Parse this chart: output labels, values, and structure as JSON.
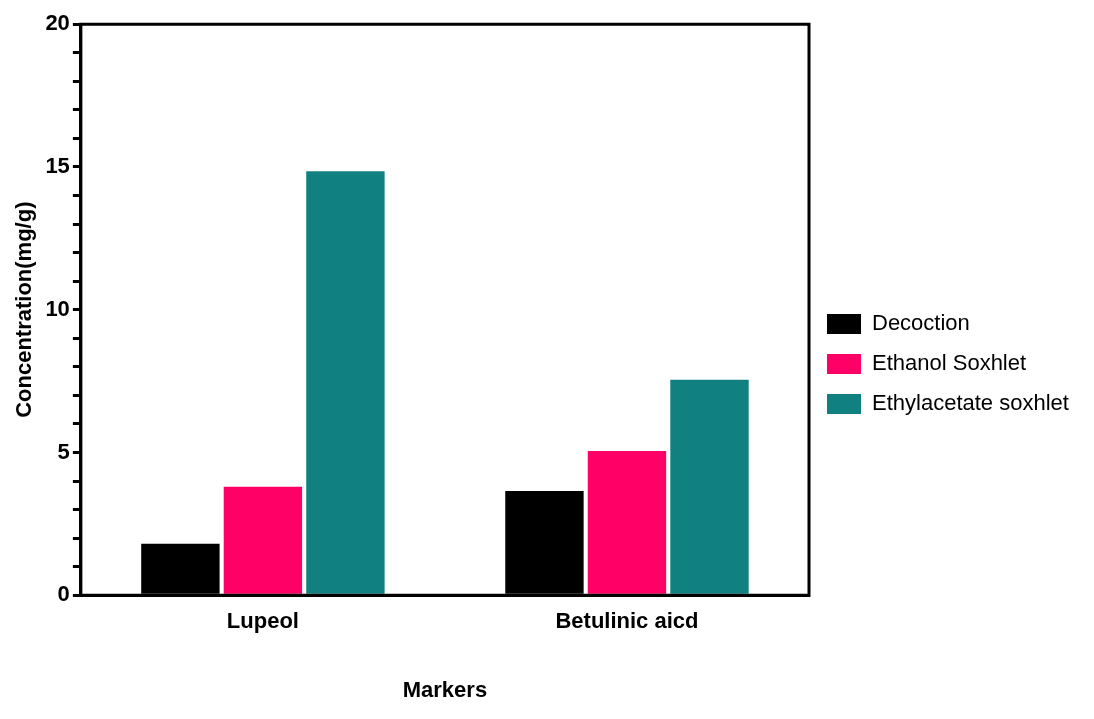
{
  "chart_data": {
    "type": "bar",
    "xlabel": "Markers",
    "ylabel": "Concentration(mg/g)",
    "categories": [
      "Lupeol",
      "Betulinic aicd"
    ],
    "series": [
      {
        "name": "Decoction",
        "color": "#000000",
        "values": [
          1.8,
          3.65
        ]
      },
      {
        "name": "Ethanol Soxhlet",
        "color": "#ff0066",
        "values": [
          3.8,
          5.05
        ]
      },
      {
        "name": "Ethylacetate soxhlet",
        "color": "#108080",
        "values": [
          14.85,
          7.55
        ]
      }
    ],
    "ylim": [
      0,
      20
    ],
    "yticks": [
      0,
      {
        "value": 1,
        "label": null
      },
      {
        "value": 2,
        "label": null
      },
      {
        "value": 3,
        "label": null
      },
      {
        "value": 4,
        "label": null
      },
      5,
      {
        "value": 6,
        "label": null
      },
      {
        "value": 7,
        "label": null
      },
      {
        "value": 8,
        "label": null
      },
      {
        "value": 9,
        "label": null
      },
      10,
      {
        "value": 11,
        "label": null
      },
      {
        "value": 12,
        "label": null
      },
      {
        "value": 13,
        "label": null
      },
      {
        "value": 14,
        "label": null
      },
      15,
      {
        "value": 16,
        "label": null
      },
      {
        "value": 17,
        "label": null
      },
      {
        "value": 18,
        "label": null
      },
      {
        "value": 19,
        "label": null
      },
      20
    ],
    "grid": false,
    "legend": "right"
  }
}
